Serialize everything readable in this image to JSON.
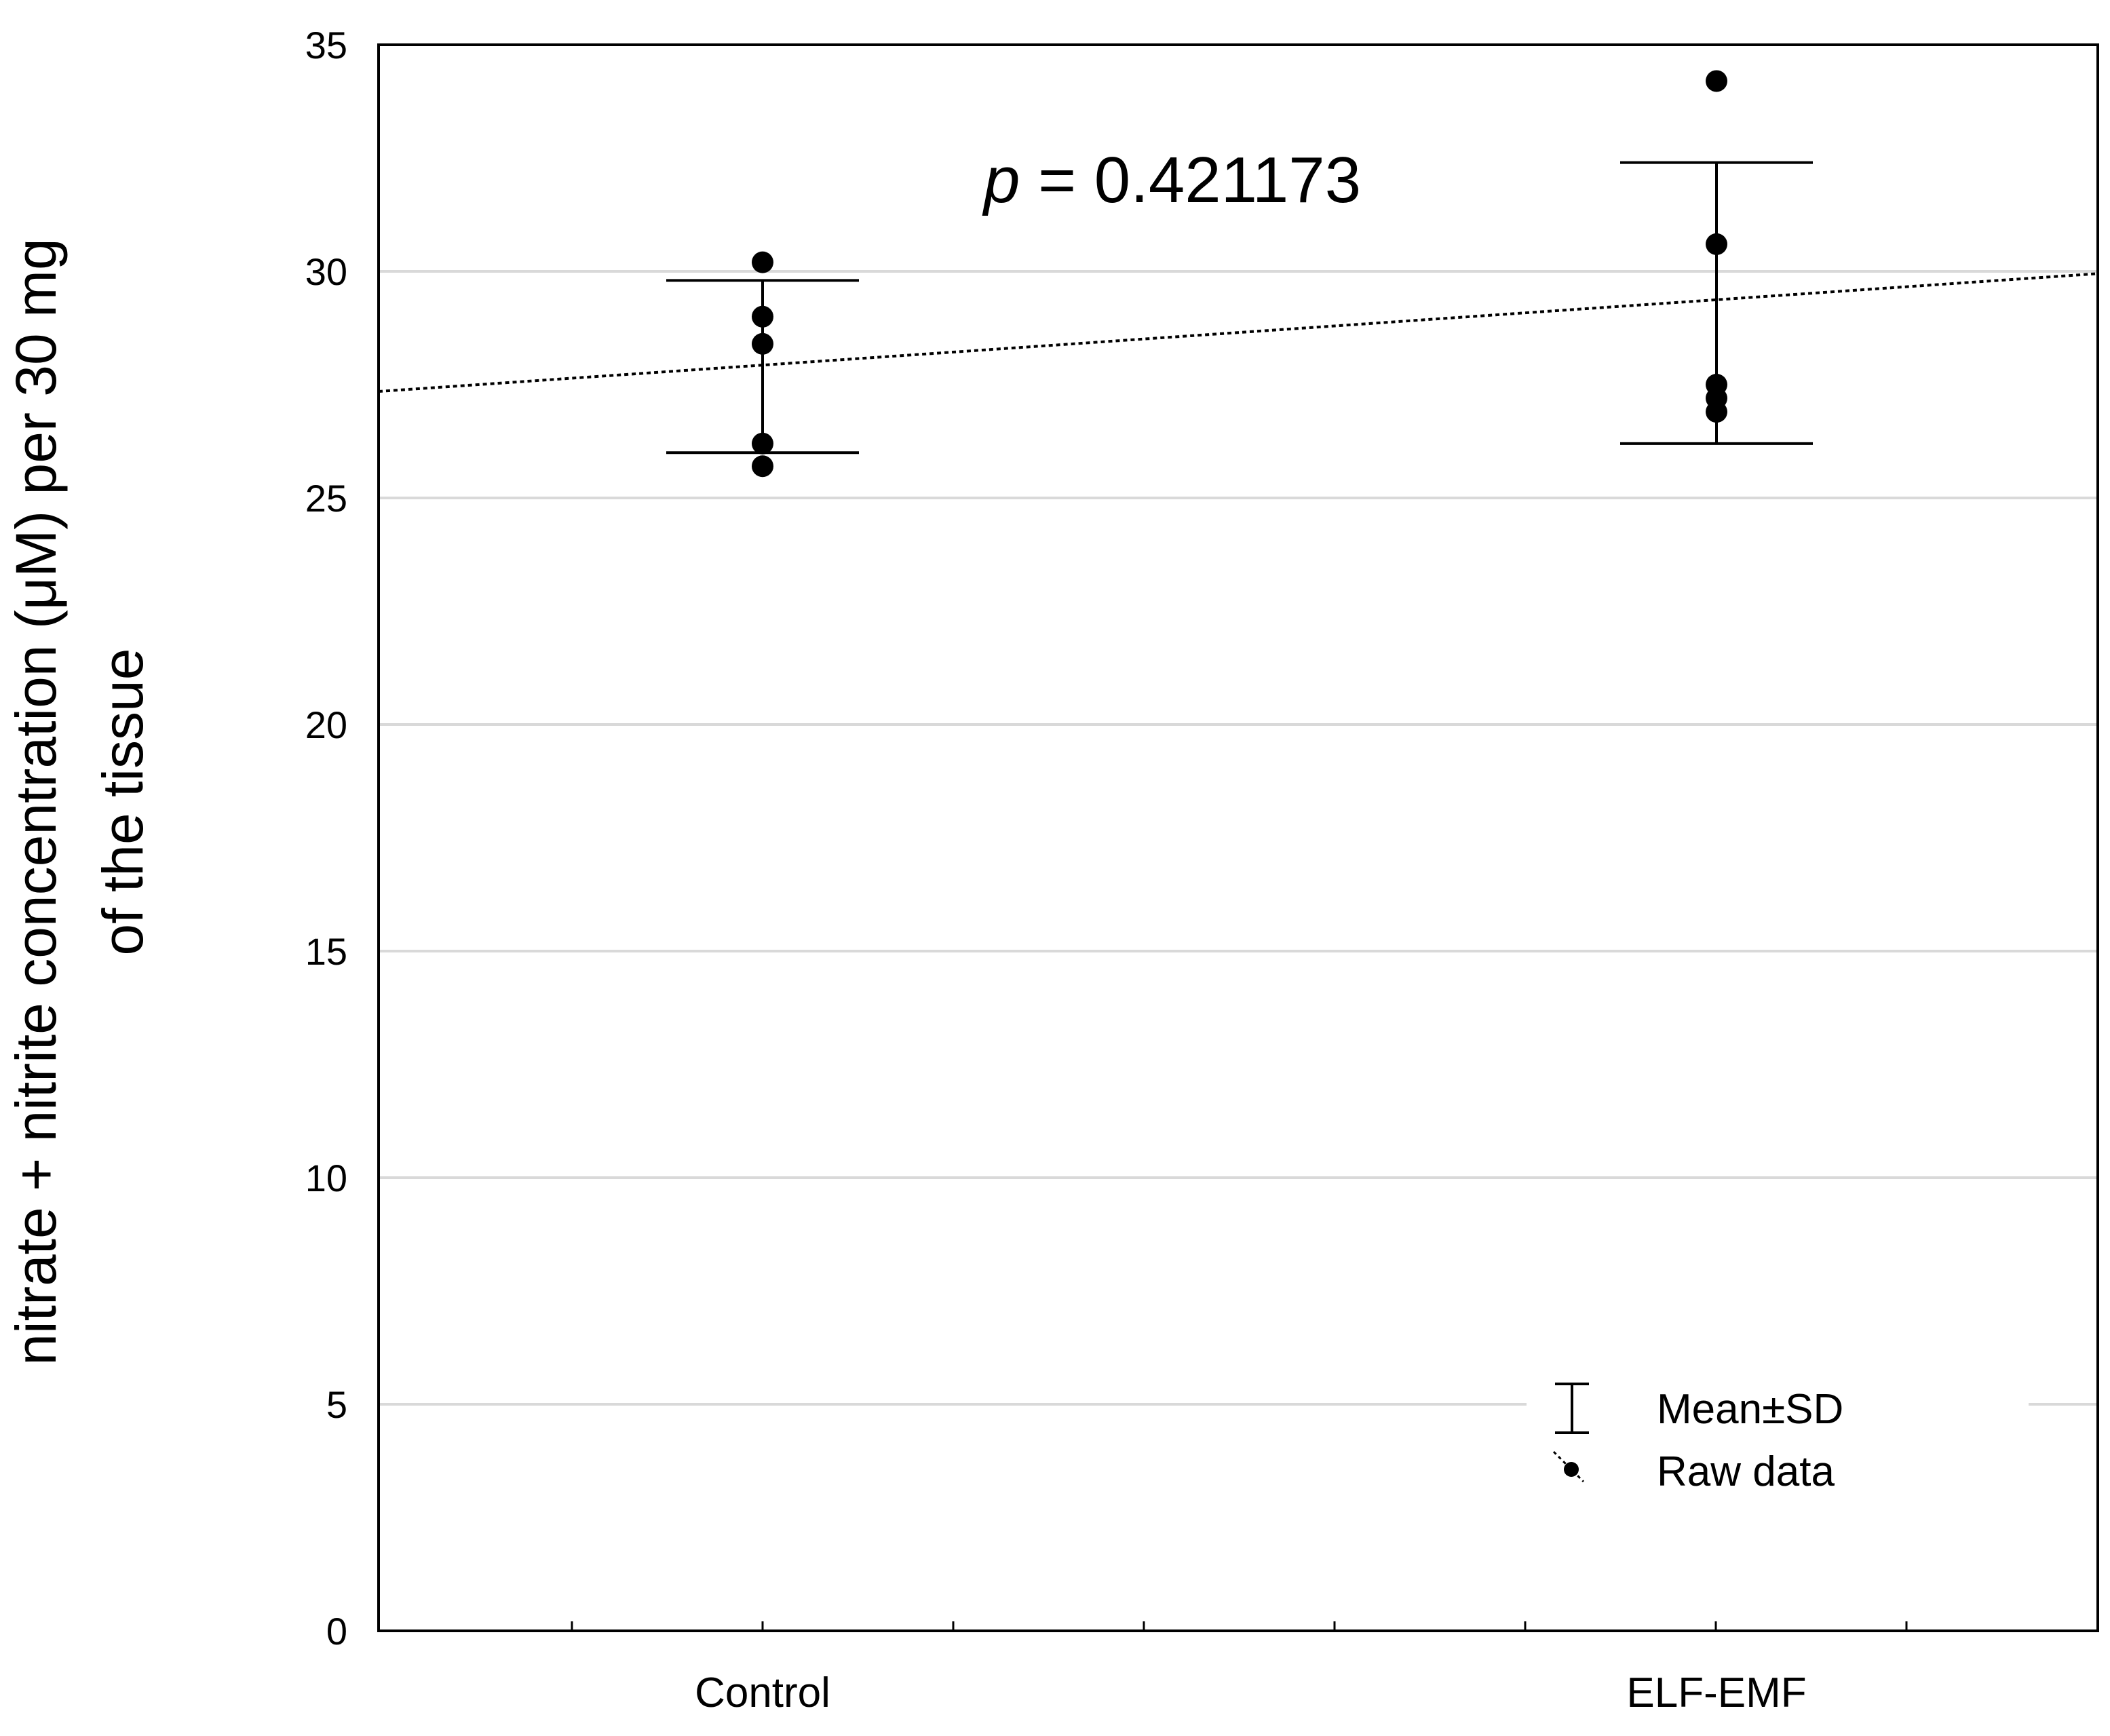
{
  "chart_data": {
    "type": "scatter",
    "title": "",
    "ylabel_lines": [
      "nitrate + nitrite concentration  (μM) per 30 mg",
      "of the tissue"
    ],
    "xlabel": "",
    "categories": [
      "Control",
      "ELF-EMF"
    ],
    "ylim": [
      0,
      35
    ],
    "yticks": [
      0,
      5,
      10,
      15,
      20,
      25,
      30,
      35
    ],
    "grid": "horizontal",
    "series": [
      {
        "name": "Raw data",
        "category": "Control",
        "values": [
          30.2,
          29.0,
          28.4,
          26.2,
          25.7
        ],
        "mean": 27.9,
        "sd": 1.9
      },
      {
        "name": "Raw data",
        "category": "ELF-EMF",
        "values": [
          34.2,
          30.6,
          27.5,
          27.2,
          26.9
        ],
        "mean": 29.3,
        "sd": 3.1
      }
    ],
    "trend_line": {
      "style": "dotted",
      "y_start": 27.35,
      "y_end": 29.95
    },
    "annotation": {
      "italic": "p",
      "text": " = 0.421173"
    },
    "legend": {
      "position": "bottom-right",
      "entries": [
        {
          "marker": "errorbar",
          "label": "Mean±SD"
        },
        {
          "marker": "dot",
          "label": "Raw data"
        }
      ]
    }
  }
}
